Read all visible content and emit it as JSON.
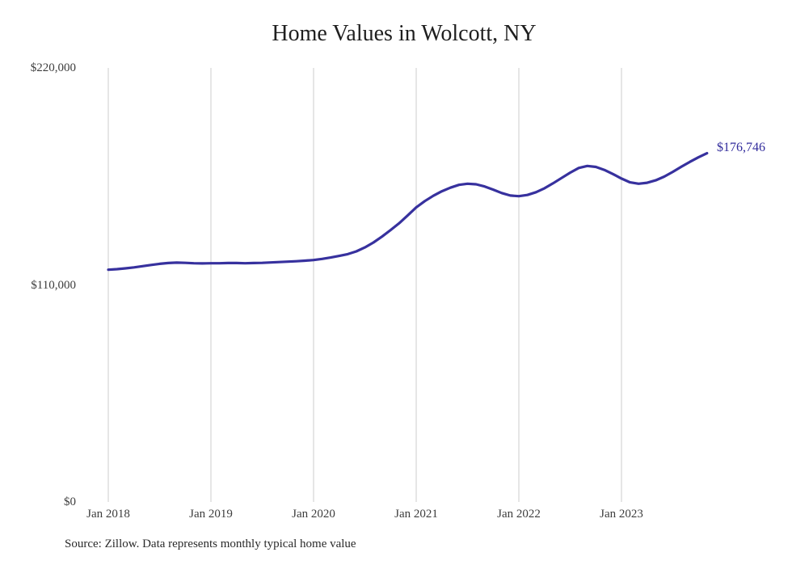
{
  "source": {
    "text": "Source: Zillow. Data represents monthly typical home value"
  },
  "colors": {
    "line": "#37319e",
    "end_label": "#322c9c",
    "grid": "#cccccc",
    "axis_text": "#3d3d3d",
    "title_text": "#1f1f1f",
    "source_text": "#2a2a2a",
    "background": "#ffffff"
  },
  "chart_data": {
    "type": "line",
    "title": "Home Values in Wolcott, NY",
    "series_name": "Monthly typical home value",
    "end_label": "$176,746",
    "final_value": 176746,
    "ylim": [
      0,
      220000
    ],
    "grid": "vertical-only",
    "legend": "none",
    "y_ticks": [
      {
        "label": "$220,000",
        "value": 220000
      },
      {
        "label": "$110,000",
        "value": 110000
      },
      {
        "label": "$0",
        "value": 0
      }
    ],
    "x_ticks": [
      {
        "label": "Jan 2018",
        "month_index": 0
      },
      {
        "label": "Jan 2019",
        "month_index": 12
      },
      {
        "label": "Jan 2020",
        "month_index": 24
      },
      {
        "label": "Jan 2021",
        "month_index": 36
      },
      {
        "label": "Jan 2022",
        "month_index": 48
      },
      {
        "label": "Jan 2023",
        "month_index": 60
      }
    ],
    "x": [
      "Jan 2018",
      "Feb 2018",
      "Mar 2018",
      "Apr 2018",
      "May 2018",
      "Jun 2018",
      "Jul 2018",
      "Aug 2018",
      "Sep 2018",
      "Oct 2018",
      "Nov 2018",
      "Dec 2018",
      "Jan 2019",
      "Feb 2019",
      "Mar 2019",
      "Apr 2019",
      "May 2019",
      "Jun 2019",
      "Jul 2019",
      "Aug 2019",
      "Sep 2019",
      "Oct 2019",
      "Nov 2019",
      "Dec 2019",
      "Jan 2020",
      "Feb 2020",
      "Mar 2020",
      "Apr 2020",
      "May 2020",
      "Jun 2020",
      "Jul 2020",
      "Aug 2020",
      "Sep 2020",
      "Oct 2020",
      "Nov 2020",
      "Dec 2020",
      "Jan 2021",
      "Feb 2021",
      "Mar 2021",
      "Apr 2021",
      "May 2021",
      "Jun 2021",
      "Jul 2021",
      "Aug 2021",
      "Sep 2021",
      "Oct 2021",
      "Nov 2021",
      "Dec 2021",
      "Jan 2022",
      "Feb 2022",
      "Mar 2022",
      "Apr 2022",
      "May 2022",
      "Jun 2022",
      "Jul 2022",
      "Aug 2022",
      "Sep 2022",
      "Oct 2022",
      "Nov 2022",
      "Dec 2022",
      "Jan 2023",
      "Feb 2023",
      "Mar 2023",
      "Apr 2023",
      "May 2023",
      "Jun 2023",
      "Jul 2023",
      "Aug 2023",
      "Sep 2023",
      "Oct 2023",
      "Nov 2023"
    ],
    "values": [
      117700,
      118000,
      118400,
      118900,
      119500,
      120100,
      120700,
      121100,
      121300,
      121200,
      121000,
      120900,
      121000,
      121000,
      121100,
      121100,
      121000,
      121100,
      121200,
      121400,
      121600,
      121800,
      122000,
      122300,
      122600,
      123200,
      123900,
      124700,
      125600,
      127000,
      129000,
      131500,
      134500,
      137800,
      141200,
      145200,
      149300,
      152500,
      155200,
      157500,
      159300,
      160700,
      161300,
      161000,
      159900,
      158300,
      156600,
      155300,
      155000,
      155600,
      157000,
      159000,
      161500,
      164200,
      166900,
      169300,
      170300,
      169800,
      168300,
      166200,
      163900,
      162000,
      161300,
      161800,
      163000,
      164900,
      167300,
      169900,
      172400,
      174700,
      176746
    ]
  }
}
